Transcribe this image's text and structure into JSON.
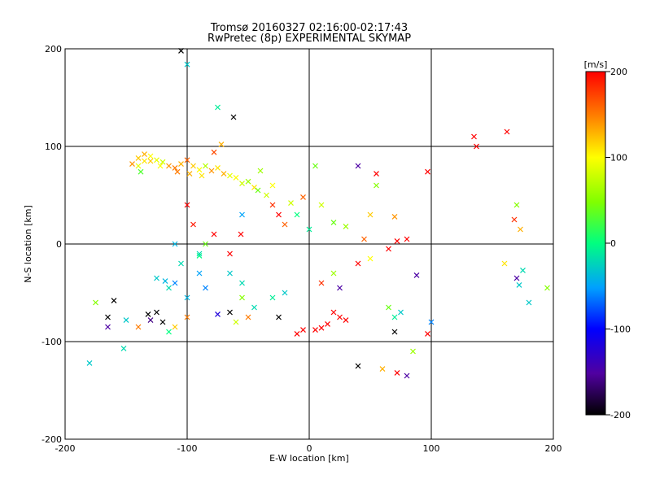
{
  "chart_data": {
    "type": "scatter",
    "title": "Tromsø 20160327 02:16:00-02:17:43",
    "subtitle": "RwPretec (8p) EXPERIMENTAL SKYMAP",
    "xlabel": "E-W location [km]",
    "ylabel": "N-S location [km]",
    "xlim": [
      -200,
      200
    ],
    "ylim": [
      -200,
      200
    ],
    "x_ticks": [
      "-200",
      "-100",
      "0",
      "100",
      "200"
    ],
    "y_ticks": [
      "200",
      "100",
      "0",
      "-100",
      "-200"
    ],
    "grid": true,
    "colorbar": {
      "label": "[m/s]",
      "min": -200,
      "max": 200,
      "ticks": [
        "200",
        "100",
        "0",
        "-100",
        "-200"
      ]
    },
    "points": [
      {
        "x": -140,
        "y": 88,
        "v": 120,
        "m": "x"
      },
      {
        "x": -135,
        "y": 85,
        "v": 110,
        "m": "x"
      },
      {
        "x": -130,
        "y": 90,
        "v": 100,
        "m": "x"
      },
      {
        "x": -125,
        "y": 86,
        "v": 90,
        "m": "x"
      },
      {
        "x": -120,
        "y": 84,
        "v": 80,
        "m": "x"
      },
      {
        "x": -115,
        "y": 80,
        "v": 140,
        "m": "x"
      },
      {
        "x": -110,
        "y": 78,
        "v": 150,
        "m": "x"
      },
      {
        "x": -105,
        "y": 82,
        "v": 130,
        "m": "x"
      },
      {
        "x": -100,
        "y": 86,
        "v": 160,
        "m": "x"
      },
      {
        "x": -95,
        "y": 80,
        "v": 120,
        "m": "x"
      },
      {
        "x": -90,
        "y": 76,
        "v": 100,
        "m": "x"
      },
      {
        "x": -85,
        "y": 80,
        "v": 70,
        "m": "x"
      },
      {
        "x": -80,
        "y": 75,
        "v": 140,
        "m": "x"
      },
      {
        "x": -75,
        "y": 78,
        "v": 110,
        "m": "x"
      },
      {
        "x": -70,
        "y": 72,
        "v": 130,
        "m": "x"
      },
      {
        "x": -65,
        "y": 70,
        "v": 90,
        "m": "x"
      },
      {
        "x": -60,
        "y": 68,
        "v": 100,
        "m": "x"
      },
      {
        "x": -55,
        "y": 62,
        "v": 80,
        "m": "x"
      },
      {
        "x": -50,
        "y": 64,
        "v": 60,
        "m": "x"
      },
      {
        "x": -45,
        "y": 58,
        "v": 110,
        "m": "x"
      },
      {
        "x": -78,
        "y": 94,
        "v": 170,
        "m": "x"
      },
      {
        "x": -72,
        "y": 102,
        "v": 130,
        "m": "x"
      },
      {
        "x": -145,
        "y": 82,
        "v": 140,
        "m": "x"
      },
      {
        "x": -138,
        "y": 74,
        "v": 30,
        "m": "x"
      },
      {
        "x": -62,
        "y": 130,
        "v": -200,
        "m": "x"
      },
      {
        "x": -100,
        "y": 40,
        "v": 200,
        "m": "x"
      },
      {
        "x": -95,
        "y": 20,
        "v": 190,
        "m": "x"
      },
      {
        "x": -78,
        "y": 10,
        "v": 200,
        "m": "x"
      },
      {
        "x": -85,
        "y": 0,
        "v": 40,
        "m": "x"
      },
      {
        "x": -110,
        "y": 0,
        "v": -40,
        "m": "x"
      },
      {
        "x": -100,
        "y": 184,
        "v": -30,
        "m": "x"
      },
      {
        "x": -105,
        "y": 198,
        "v": -200,
        "m": "x"
      },
      {
        "x": -75,
        "y": 140,
        "v": -10,
        "m": "x"
      },
      {
        "x": -90,
        "y": -12,
        "v": 0,
        "m": "x"
      },
      {
        "x": -65,
        "y": -10,
        "v": 200,
        "m": "x"
      },
      {
        "x": -56,
        "y": 10,
        "v": 200,
        "m": "x"
      },
      {
        "x": -55,
        "y": 30,
        "v": -50,
        "m": "x"
      },
      {
        "x": -30,
        "y": 40,
        "v": 180,
        "m": "x"
      },
      {
        "x": -25,
        "y": 30,
        "v": 200,
        "m": "x"
      },
      {
        "x": -20,
        "y": 20,
        "v": 160,
        "m": "x"
      },
      {
        "x": -15,
        "y": 42,
        "v": 80,
        "m": "x"
      },
      {
        "x": -40,
        "y": 75,
        "v": 60,
        "m": "x"
      },
      {
        "x": -30,
        "y": 60,
        "v": 100,
        "m": "x"
      },
      {
        "x": 5,
        "y": 80,
        "v": 40,
        "m": "x"
      },
      {
        "x": 40,
        "y": 80,
        "v": -150,
        "m": "x"
      },
      {
        "x": 55,
        "y": 72,
        "v": 200,
        "m": "x"
      },
      {
        "x": 97,
        "y": 74,
        "v": 200,
        "m": "x"
      },
      {
        "x": 135,
        "y": 110,
        "v": 200,
        "m": "x"
      },
      {
        "x": 137,
        "y": 100,
        "v": 200,
        "m": "x"
      },
      {
        "x": 162,
        "y": 115,
        "v": 200,
        "m": "x"
      },
      {
        "x": 170,
        "y": 40,
        "v": 50,
        "m": "x"
      },
      {
        "x": 168,
        "y": 25,
        "v": 180,
        "m": "x"
      },
      {
        "x": 173,
        "y": 15,
        "v": 130,
        "m": "x"
      },
      {
        "x": 50,
        "y": 30,
        "v": 120,
        "m": "x"
      },
      {
        "x": 70,
        "y": 28,
        "v": 140,
        "m": "x"
      },
      {
        "x": 45,
        "y": 5,
        "v": 160,
        "m": "x"
      },
      {
        "x": 72,
        "y": 3,
        "v": 200,
        "m": "x"
      },
      {
        "x": 80,
        "y": 5,
        "v": 200,
        "m": "x"
      },
      {
        "x": 65,
        "y": -5,
        "v": 200,
        "m": "x"
      },
      {
        "x": 20,
        "y": 22,
        "v": 40,
        "m": "x"
      },
      {
        "x": 30,
        "y": 18,
        "v": 60,
        "m": "x"
      },
      {
        "x": 10,
        "y": 40,
        "v": 80,
        "m": "x"
      },
      {
        "x": -10,
        "y": 30,
        "v": 0,
        "m": "x"
      },
      {
        "x": 0,
        "y": 15,
        "v": -10,
        "m": "x"
      },
      {
        "x": 40,
        "y": -20,
        "v": 200,
        "m": "x"
      },
      {
        "x": 50,
        "y": -15,
        "v": 100,
        "m": "x"
      },
      {
        "x": 20,
        "y": -30,
        "v": 60,
        "m": "x"
      },
      {
        "x": 10,
        "y": -40,
        "v": 180,
        "m": "x"
      },
      {
        "x": 20,
        "y": -70,
        "v": 200,
        "m": "x"
      },
      {
        "x": 25,
        "y": -75,
        "v": 200,
        "m": "x"
      },
      {
        "x": 30,
        "y": -78,
        "v": 200,
        "m": "x"
      },
      {
        "x": 15,
        "y": -82,
        "v": 200,
        "m": "x"
      },
      {
        "x": 10,
        "y": -86,
        "v": 200,
        "m": "x"
      },
      {
        "x": 5,
        "y": -88,
        "v": 200,
        "m": "x"
      },
      {
        "x": -5,
        "y": -88,
        "v": 200,
        "m": "x"
      },
      {
        "x": -10,
        "y": -92,
        "v": 200,
        "m": "x"
      },
      {
        "x": -25,
        "y": -75,
        "v": -200,
        "m": "x"
      },
      {
        "x": -30,
        "y": -55,
        "v": -10,
        "m": "x"
      },
      {
        "x": -20,
        "y": -50,
        "v": -30,
        "m": "x"
      },
      {
        "x": -45,
        "y": -65,
        "v": -20,
        "m": "x"
      },
      {
        "x": -55,
        "y": -55,
        "v": 50,
        "m": "x"
      },
      {
        "x": -50,
        "y": -75,
        "v": 150,
        "m": "x"
      },
      {
        "x": -60,
        "y": -80,
        "v": 80,
        "m": "x"
      },
      {
        "x": -65,
        "y": -70,
        "v": -200,
        "m": "x"
      },
      {
        "x": -75,
        "y": -72,
        "v": -120,
        "m": "x"
      },
      {
        "x": -85,
        "y": -45,
        "v": -60,
        "m": "x"
      },
      {
        "x": -100,
        "y": -55,
        "v": -40,
        "m": "x"
      },
      {
        "x": -110,
        "y": -40,
        "v": -60,
        "m": "x"
      },
      {
        "x": -115,
        "y": -45,
        "v": -20,
        "m": "x"
      },
      {
        "x": -118,
        "y": -38,
        "v": -40,
        "m": "x"
      },
      {
        "x": -125,
        "y": -35,
        "v": -30,
        "m": "x"
      },
      {
        "x": -105,
        "y": -20,
        "v": -20,
        "m": "x"
      },
      {
        "x": -90,
        "y": -30,
        "v": -50,
        "m": "x"
      },
      {
        "x": -65,
        "y": -30,
        "v": -30,
        "m": "x"
      },
      {
        "x": -55,
        "y": -40,
        "v": -20,
        "m": "x"
      },
      {
        "x": -125,
        "y": -70,
        "v": -200,
        "m": "x"
      },
      {
        "x": -132,
        "y": -72,
        "v": -200,
        "m": "x"
      },
      {
        "x": -120,
        "y": -80,
        "v": -200,
        "m": "x"
      },
      {
        "x": -130,
        "y": -78,
        "v": -160,
        "m": "x"
      },
      {
        "x": -100,
        "y": -75,
        "v": 150,
        "m": "x"
      },
      {
        "x": -110,
        "y": -85,
        "v": 120,
        "m": "x"
      },
      {
        "x": -115,
        "y": -90,
        "v": 0,
        "m": "x"
      },
      {
        "x": -140,
        "y": -85,
        "v": 150,
        "m": "x"
      },
      {
        "x": -150,
        "y": -78,
        "v": -30,
        "m": "x"
      },
      {
        "x": -160,
        "y": -58,
        "v": -200,
        "m": "x"
      },
      {
        "x": -165,
        "y": -75,
        "v": -200,
        "m": "x"
      },
      {
        "x": -165,
        "y": -85,
        "v": -150,
        "m": "x"
      },
      {
        "x": -175,
        "y": -60,
        "v": 50,
        "m": "x"
      },
      {
        "x": -152,
        "y": -107,
        "v": -20,
        "m": "x"
      },
      {
        "x": -180,
        "y": -122,
        "v": -30,
        "m": "x"
      },
      {
        "x": -90,
        "y": -10,
        "v": -20,
        "m": "x"
      },
      {
        "x": 25,
        "y": -45,
        "v": -150,
        "m": "x"
      },
      {
        "x": 65,
        "y": -65,
        "v": 40,
        "m": "x"
      },
      {
        "x": 70,
        "y": -75,
        "v": -10,
        "m": "x"
      },
      {
        "x": 75,
        "y": -70,
        "v": -30,
        "m": "x"
      },
      {
        "x": 88,
        "y": -32,
        "v": -150,
        "m": "x"
      },
      {
        "x": 70,
        "y": -90,
        "v": -200,
        "m": "x"
      },
      {
        "x": 100,
        "y": -80,
        "v": -60,
        "m": "x"
      },
      {
        "x": 97,
        "y": -92,
        "v": 200,
        "m": "x"
      },
      {
        "x": 85,
        "y": -110,
        "v": 60,
        "m": "x"
      },
      {
        "x": 60,
        "y": -128,
        "v": 130,
        "m": "x"
      },
      {
        "x": 72,
        "y": -132,
        "v": 200,
        "m": "x"
      },
      {
        "x": 80,
        "y": -135,
        "v": -150,
        "m": "x"
      },
      {
        "x": 40,
        "y": -125,
        "v": -200,
        "m": "x"
      },
      {
        "x": 170,
        "y": -35,
        "v": -150,
        "m": "x"
      },
      {
        "x": 172,
        "y": -42,
        "v": -30,
        "m": "x"
      },
      {
        "x": 175,
        "y": -27,
        "v": -20,
        "m": "x"
      },
      {
        "x": 195,
        "y": -45,
        "v": 50,
        "m": "x"
      },
      {
        "x": 160,
        "y": -20,
        "v": 110,
        "m": "x"
      },
      {
        "x": 180,
        "y": -60,
        "v": -30,
        "m": "x"
      },
      {
        "x": 55,
        "y": 60,
        "v": 50,
        "m": "x"
      },
      {
        "x": -5,
        "y": 48,
        "v": 160,
        "m": "x"
      },
      {
        "x": -130,
        "y": 85,
        "v": 120,
        "m": "x"
      },
      {
        "x": -122,
        "y": 80,
        "v": 100,
        "m": "x"
      },
      {
        "x": -108,
        "y": 74,
        "v": 150,
        "m": "x"
      },
      {
        "x": -98,
        "y": 72,
        "v": 130,
        "m": "x"
      },
      {
        "x": -88,
        "y": 70,
        "v": 110,
        "m": "x"
      },
      {
        "x": -140,
        "y": 80,
        "v": 90,
        "m": "x"
      },
      {
        "x": -135,
        "y": 92,
        "v": 130,
        "m": "x"
      },
      {
        "x": -42,
        "y": 55,
        "v": 40,
        "m": "x"
      },
      {
        "x": -35,
        "y": 50,
        "v": 80,
        "m": "x"
      }
    ]
  }
}
